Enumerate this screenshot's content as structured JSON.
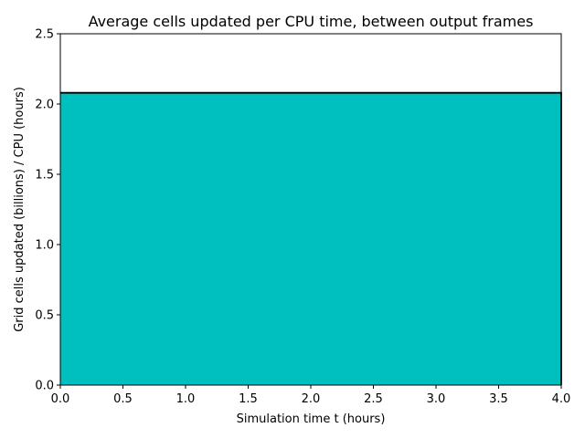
{
  "chart_data": {
    "type": "bar",
    "title": "Average cells updated per CPU time, between output frames",
    "xlabel": "Simulation time t (hours)",
    "ylabel": "Grid cells updated (billions) / CPU (hours)",
    "xlim": [
      0.0,
      4.0
    ],
    "ylim": [
      0.0,
      2.5
    ],
    "xticks": [
      "0.0",
      "0.5",
      "1.0",
      "1.5",
      "2.0",
      "2.5",
      "3.0",
      "3.5",
      "4.0"
    ],
    "yticks": [
      "0.0",
      "0.5",
      "1.0",
      "1.5",
      "2.0",
      "2.5"
    ],
    "bars": [
      {
        "x_start": 0.0,
        "x_end": 4.0,
        "value": 2.08
      }
    ],
    "grid": false,
    "colors": {
      "bar_fill": "#00bfbf",
      "bar_edge": "#000000"
    }
  }
}
